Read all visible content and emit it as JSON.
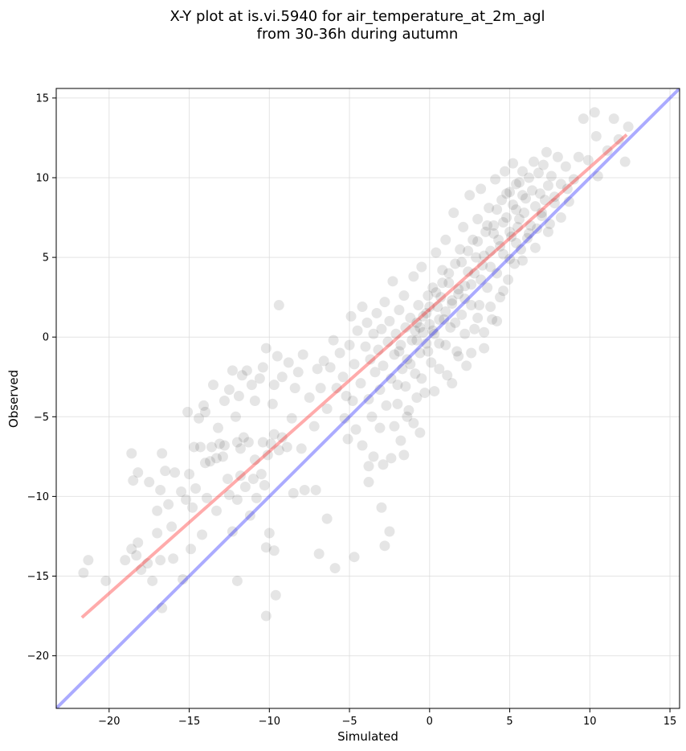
{
  "chart_data": {
    "type": "scatter",
    "title_line1": "X-Y plot at is.vi.5940 for air_temperature_at_2m_agl",
    "title_line2": "from 30-36h during autumn",
    "xlabel": "Simulated",
    "ylabel": "Observed",
    "xlim": [
      -23.3,
      15.6
    ],
    "ylim": [
      -23.3,
      15.6
    ],
    "x_ticks": [
      -20,
      -15,
      -10,
      -5,
      0,
      5,
      10,
      15
    ],
    "y_ticks": [
      -20,
      -15,
      -10,
      -5,
      0,
      5,
      10,
      15
    ],
    "x_tick_labels": [
      "−20",
      "−15",
      "−10",
      "−5",
      "0",
      "5",
      "10",
      "15"
    ],
    "y_tick_labels": [
      "−20",
      "−15",
      "−10",
      "−5",
      "0",
      "5",
      "10",
      "15"
    ],
    "grid": true,
    "colors": {
      "points": "#000000",
      "identity_line": "#0000ff",
      "regression_line": "#ff0000",
      "grid": "#d9d9d9"
    },
    "identity_line": {
      "x": [
        -23.3,
        15.6
      ],
      "y": [
        -23.3,
        15.6
      ]
    },
    "regression_line": {
      "x": [
        -21.7,
        12.3
      ],
      "y": [
        -17.6,
        12.7
      ]
    },
    "points": [
      [
        -21.6,
        -14.8
      ],
      [
        -21.3,
        -14.0
      ],
      [
        -20.2,
        -15.3
      ],
      [
        -19.0,
        -14.0
      ],
      [
        -18.6,
        -13.3
      ],
      [
        -18.3,
        -13.7
      ],
      [
        -18.2,
        -12.9
      ],
      [
        -18.0,
        -14.6
      ],
      [
        -17.6,
        -14.2
      ],
      [
        -17.3,
        -15.3
      ],
      [
        -17.0,
        -12.3
      ],
      [
        -16.8,
        -14.0
      ],
      [
        -16.7,
        -17.0
      ],
      [
        -16.0,
        -13.9
      ],
      [
        -15.4,
        -15.2
      ],
      [
        -14.9,
        -13.3
      ],
      [
        -14.2,
        -12.4
      ],
      [
        -18.6,
        -7.3
      ],
      [
        -18.5,
        -9.0
      ],
      [
        -18.2,
        -8.5
      ],
      [
        -17.5,
        -9.1
      ],
      [
        -17.0,
        -10.9
      ],
      [
        -16.8,
        -9.6
      ],
      [
        -16.7,
        -7.3
      ],
      [
        -16.5,
        -8.4
      ],
      [
        -16.3,
        -10.5
      ],
      [
        -16.1,
        -11.9
      ],
      [
        -15.9,
        -8.5
      ],
      [
        -15.5,
        -9.7
      ],
      [
        -15.2,
        -10.2
      ],
      [
        -15.0,
        -8.6
      ],
      [
        -14.8,
        -10.7
      ],
      [
        -14.6,
        -9.5
      ],
      [
        -14.3,
        -6.9
      ],
      [
        -14.0,
        -7.9
      ],
      [
        -13.9,
        -10.1
      ],
      [
        -13.6,
        -6.9
      ],
      [
        -13.3,
        -10.9
      ],
      [
        -13.1,
        -6.7
      ],
      [
        -12.9,
        -7.5
      ],
      [
        -12.6,
        -8.9
      ],
      [
        -12.3,
        -12.2
      ],
      [
        -12.0,
        -10.2
      ],
      [
        -11.8,
        -8.7
      ],
      [
        -11.5,
        -9.4
      ],
      [
        -11.2,
        -11.2
      ],
      [
        -11.0,
        -8.9
      ],
      [
        -10.8,
        -10.1
      ],
      [
        -10.5,
        -8.6
      ],
      [
        -10.3,
        -9.3
      ],
      [
        -10.2,
        -13.2
      ],
      [
        -10.0,
        -12.3
      ],
      [
        -9.7,
        -13.4
      ],
      [
        -9.6,
        -16.2
      ],
      [
        -12.0,
        -15.3
      ],
      [
        -10.2,
        -17.5
      ],
      [
        -15.1,
        -4.7
      ],
      [
        -14.7,
        -6.9
      ],
      [
        -14.4,
        -5.1
      ],
      [
        -14.0,
        -4.7
      ],
      [
        -14.1,
        -4.3
      ],
      [
        -13.5,
        -3.0
      ],
      [
        -13.2,
        -5.7
      ],
      [
        -12.8,
        -4.0
      ],
      [
        -12.5,
        -3.3
      ],
      [
        -12.3,
        -2.1
      ],
      [
        -12.1,
        -5.0
      ],
      [
        -11.9,
        -3.7
      ],
      [
        -11.7,
        -2.4
      ],
      [
        -11.4,
        -2.1
      ],
      [
        -11.1,
        -3.0
      ],
      [
        -10.9,
        -4.0
      ],
      [
        -10.6,
        -2.6
      ],
      [
        -10.4,
        -1.9
      ],
      [
        -10.2,
        -0.7
      ],
      [
        -9.8,
        -4.2
      ],
      [
        -9.7,
        -3.0
      ],
      [
        -9.5,
        -1.2
      ],
      [
        -9.2,
        -2.5
      ],
      [
        -8.8,
        -1.6
      ],
      [
        -8.6,
        -5.1
      ],
      [
        -8.4,
        -3.2
      ],
      [
        -8.2,
        -2.2
      ],
      [
        -7.9,
        -1.1
      ],
      [
        -7.5,
        -3.8
      ],
      [
        -7.2,
        -5.6
      ],
      [
        -7.0,
        -2.0
      ],
      [
        -6.8,
        -3.2
      ],
      [
        -6.6,
        -1.5
      ],
      [
        -6.4,
        -4.5
      ],
      [
        -6.2,
        -1.9
      ],
      [
        -6.0,
        -0.2
      ],
      [
        -9.4,
        2.0
      ],
      [
        -13.7,
        -7.8
      ],
      [
        -13.3,
        -7.6
      ],
      [
        -12.8,
        -6.8
      ],
      [
        -12.5,
        -9.9
      ],
      [
        -12.0,
        -6.6
      ],
      [
        -11.8,
        -7.0
      ],
      [
        -11.6,
        -6.3
      ],
      [
        -11.3,
        -6.6
      ],
      [
        -10.9,
        -7.7
      ],
      [
        -10.4,
        -6.6
      ],
      [
        -10.1,
        -7.4
      ],
      [
        -9.9,
        -6.7
      ],
      [
        -9.7,
        -6.1
      ],
      [
        -9.4,
        -7.1
      ],
      [
        -9.2,
        -6.3
      ],
      [
        -8.9,
        -6.9
      ],
      [
        -8.5,
        -9.8
      ],
      [
        -8.0,
        -7.0
      ],
      [
        -7.8,
        -9.6
      ],
      [
        -7.1,
        -9.6
      ],
      [
        -6.9,
        -13.6
      ],
      [
        -6.4,
        -11.4
      ],
      [
        -5.9,
        -14.5
      ],
      [
        -4.7,
        -13.8
      ],
      [
        -3.0,
        -10.7
      ],
      [
        -2.8,
        -13.1
      ],
      [
        -2.5,
        -12.2
      ],
      [
        -3.8,
        -9.1
      ],
      [
        -5.8,
        -3.2
      ],
      [
        -5.6,
        -1.0
      ],
      [
        -5.4,
        -2.5
      ],
      [
        -5.2,
        -3.7
      ],
      [
        -5.0,
        -0.5
      ],
      [
        -4.9,
        1.3
      ],
      [
        -4.7,
        -1.7
      ],
      [
        -4.5,
        0.4
      ],
      [
        -4.3,
        -2.9
      ],
      [
        -4.2,
        1.9
      ],
      [
        -4.0,
        -0.6
      ],
      [
        -3.9,
        0.9
      ],
      [
        -3.8,
        -3.9
      ],
      [
        -3.7,
        -1.4
      ],
      [
        -3.6,
        -5.0
      ],
      [
        -3.5,
        0.2
      ],
      [
        -3.4,
        -2.2
      ],
      [
        -3.3,
        1.5
      ],
      [
        -3.2,
        -0.8
      ],
      [
        -3.1,
        -3.3
      ],
      [
        -3.0,
        0.5
      ],
      [
        -2.9,
        -1.8
      ],
      [
        -2.8,
        2.2
      ],
      [
        -2.7,
        -4.3
      ],
      [
        -2.6,
        -0.3
      ],
      [
        -2.5,
        1.0
      ],
      [
        -2.4,
        -2.6
      ],
      [
        -2.3,
        3.5
      ],
      [
        -2.2,
        -1.1
      ],
      [
        -2.1,
        0.2
      ],
      [
        -2.0,
        -3.0
      ],
      [
        -1.9,
        1.7
      ],
      [
        -1.8,
        -0.5
      ],
      [
        -1.7,
        -2.0
      ],
      [
        -1.6,
        2.6
      ],
      [
        -1.5,
        0.6
      ],
      [
        -1.4,
        -1.4
      ],
      [
        -1.3,
        -4.6
      ],
      [
        -1.2,
        1.2
      ],
      [
        -1.1,
        -0.2
      ],
      [
        -1.0,
        3.8
      ],
      [
        -0.9,
        -2.3
      ],
      [
        -0.8,
        0.9
      ],
      [
        -0.7,
        2.0
      ],
      [
        -0.6,
        -1.0
      ],
      [
        -0.5,
        4.4
      ],
      [
        -0.4,
        0.3
      ],
      [
        -0.3,
        -3.5
      ],
      [
        -0.2,
        1.5
      ],
      [
        -0.1,
        2.6
      ],
      [
        0.0,
        0.8
      ],
      [
        0.1,
        -1.6
      ],
      [
        0.2,
        3.1
      ],
      [
        0.3,
        0.2
      ],
      [
        0.4,
        5.3
      ],
      [
        0.5,
        1.9
      ],
      [
        0.6,
        -0.4
      ],
      [
        0.7,
        2.5
      ],
      [
        0.8,
        4.2
      ],
      [
        0.9,
        1.1
      ],
      [
        1.0,
        6.1
      ],
      [
        1.1,
        -2.4
      ],
      [
        1.2,
        3.4
      ],
      [
        1.3,
        0.6
      ],
      [
        1.4,
        2.1
      ],
      [
        1.5,
        7.8
      ],
      [
        1.6,
        4.6
      ],
      [
        1.7,
        -0.9
      ],
      [
        1.8,
        3.0
      ],
      [
        1.9,
        5.5
      ],
      [
        2.0,
        1.4
      ],
      [
        2.1,
        6.9
      ],
      [
        2.2,
        2.4
      ],
      [
        2.3,
        -1.8
      ],
      [
        2.4,
        4.1
      ],
      [
        2.5,
        8.9
      ],
      [
        2.6,
        3.3
      ],
      [
        2.7,
        6.1
      ],
      [
        2.8,
        0.5
      ],
      [
        2.9,
        5.0
      ],
      [
        3.0,
        7.4
      ],
      [
        3.1,
        2.0
      ],
      [
        3.2,
        9.3
      ],
      [
        3.3,
        4.5
      ],
      [
        3.4,
        -0.7
      ],
      [
        3.5,
        6.6
      ],
      [
        3.6,
        3.1
      ],
      [
        3.7,
        8.1
      ],
      [
        3.8,
        5.4
      ],
      [
        3.9,
        1.1
      ],
      [
        4.0,
        7.0
      ],
      [
        4.1,
        9.9
      ],
      [
        4.2,
        4.0
      ],
      [
        4.3,
        6.1
      ],
      [
        4.4,
        2.5
      ],
      [
        4.5,
        8.6
      ],
      [
        4.6,
        5.2
      ],
      [
        4.7,
        10.4
      ],
      [
        4.8,
        7.5
      ],
      [
        4.9,
        3.6
      ],
      [
        5.0,
        9.1
      ],
      [
        5.1,
        6.3
      ],
      [
        5.2,
        10.9
      ],
      [
        5.3,
        4.6
      ],
      [
        5.4,
        8.0
      ],
      [
        5.5,
        6.9
      ],
      [
        5.6,
        9.7
      ],
      [
        5.7,
        5.5
      ],
      [
        5.8,
        10.4
      ],
      [
        5.9,
        7.8
      ],
      [
        6.0,
        8.7
      ],
      [
        6.1,
        6.2
      ],
      [
        6.2,
        10.0
      ],
      [
        6.3,
        7.0
      ],
      [
        6.4,
        9.2
      ],
      [
        6.5,
        11.0
      ],
      [
        6.6,
        8.2
      ],
      [
        6.7,
        6.8
      ],
      [
        6.8,
        10.3
      ],
      [
        6.9,
        9.0
      ],
      [
        7.0,
        7.6
      ],
      [
        7.1,
        10.8
      ],
      [
        7.2,
        8.6
      ],
      [
        7.3,
        11.6
      ],
      [
        7.4,
        9.5
      ],
      [
        7.5,
        7.1
      ],
      [
        7.6,
        10.1
      ],
      [
        7.8,
        8.8
      ],
      [
        8.0,
        11.3
      ],
      [
        8.2,
        9.6
      ],
      [
        8.5,
        10.7
      ],
      [
        8.7,
        8.5
      ],
      [
        9.0,
        9.9
      ],
      [
        9.3,
        11.3
      ],
      [
        9.6,
        13.7
      ],
      [
        9.9,
        11.1
      ],
      [
        10.3,
        14.1
      ],
      [
        10.4,
        12.6
      ],
      [
        10.5,
        10.1
      ],
      [
        11.1,
        11.7
      ],
      [
        11.5,
        13.7
      ],
      [
        11.8,
        12.4
      ],
      [
        12.2,
        11.0
      ],
      [
        12.4,
        13.2
      ],
      [
        -0.8,
        -0.2
      ],
      [
        -0.6,
        0.6
      ],
      [
        -0.4,
        1.3
      ],
      [
        -0.2,
        -0.4
      ],
      [
        0.0,
        1.9
      ],
      [
        0.2,
        0.4
      ],
      [
        0.4,
        2.8
      ],
      [
        0.6,
        1.1
      ],
      [
        0.8,
        3.4
      ],
      [
        1.0,
        1.6
      ],
      [
        1.2,
        4.0
      ],
      [
        1.4,
        2.3
      ],
      [
        1.6,
        0.9
      ],
      [
        1.8,
        2.7
      ],
      [
        2.0,
        4.7
      ],
      [
        2.2,
        3.2
      ],
      [
        2.4,
        5.4
      ],
      [
        2.6,
        2.0
      ],
      [
        2.8,
        4.0
      ],
      [
        3.0,
        6.0
      ],
      [
        3.2,
        3.6
      ],
      [
        3.4,
        5.1
      ],
      [
        3.6,
        7.0
      ],
      [
        3.8,
        4.4
      ],
      [
        4.0,
        6.5
      ],
      [
        4.2,
        8.0
      ],
      [
        4.4,
        5.7
      ],
      [
        4.6,
        7.2
      ],
      [
        4.8,
        9.0
      ],
      [
        5.0,
        6.6
      ],
      [
        5.2,
        8.3
      ],
      [
        5.4,
        9.6
      ],
      [
        5.6,
        7.4
      ],
      [
        5.8,
        8.9
      ],
      [
        -1.9,
        -0.9
      ],
      [
        -1.5,
        -3.1
      ],
      [
        -1.2,
        -1.7
      ],
      [
        -0.9,
        0.4
      ],
      [
        -0.5,
        -2.6
      ],
      [
        -0.1,
        -0.9
      ],
      [
        0.3,
        -3.4
      ],
      [
        0.6,
        -2.0
      ],
      [
        1.0,
        -0.5
      ],
      [
        1.4,
        -2.9
      ],
      [
        1.8,
        -1.2
      ],
      [
        2.2,
        0.2
      ],
      [
        2.6,
        -1.0
      ],
      [
        3.0,
        1.2
      ],
      [
        3.4,
        0.3
      ],
      [
        3.8,
        1.9
      ],
      [
        4.2,
        1.0
      ],
      [
        4.6,
        2.9
      ],
      [
        5.0,
        4.9
      ],
      [
        5.4,
        5.9
      ],
      [
        5.8,
        4.8
      ],
      [
        6.2,
        6.5
      ],
      [
        6.6,
        5.6
      ],
      [
        7.0,
        7.8
      ],
      [
        7.4,
        6.6
      ],
      [
        7.8,
        8.4
      ],
      [
        8.2,
        7.5
      ],
      [
        8.6,
        9.3
      ],
      [
        -2.4,
        -7.6
      ],
      [
        -2.2,
        -5.6
      ],
      [
        -2.0,
        -4.2
      ],
      [
        -1.8,
        -6.5
      ],
      [
        -1.6,
        -7.4
      ],
      [
        -1.4,
        -5.0
      ],
      [
        -1.0,
        -5.4
      ],
      [
        -0.8,
        -3.8
      ],
      [
        -0.6,
        -6.0
      ],
      [
        -4.2,
        -6.8
      ],
      [
        -3.8,
        -8.1
      ],
      [
        -3.5,
        -7.5
      ],
      [
        -3.1,
        -5.7
      ],
      [
        -2.9,
        -8.0
      ],
      [
        -4.8,
        -4.0
      ],
      [
        -5.1,
        -6.4
      ],
      [
        -5.3,
        -5.1
      ],
      [
        -4.6,
        -5.8
      ]
    ]
  }
}
